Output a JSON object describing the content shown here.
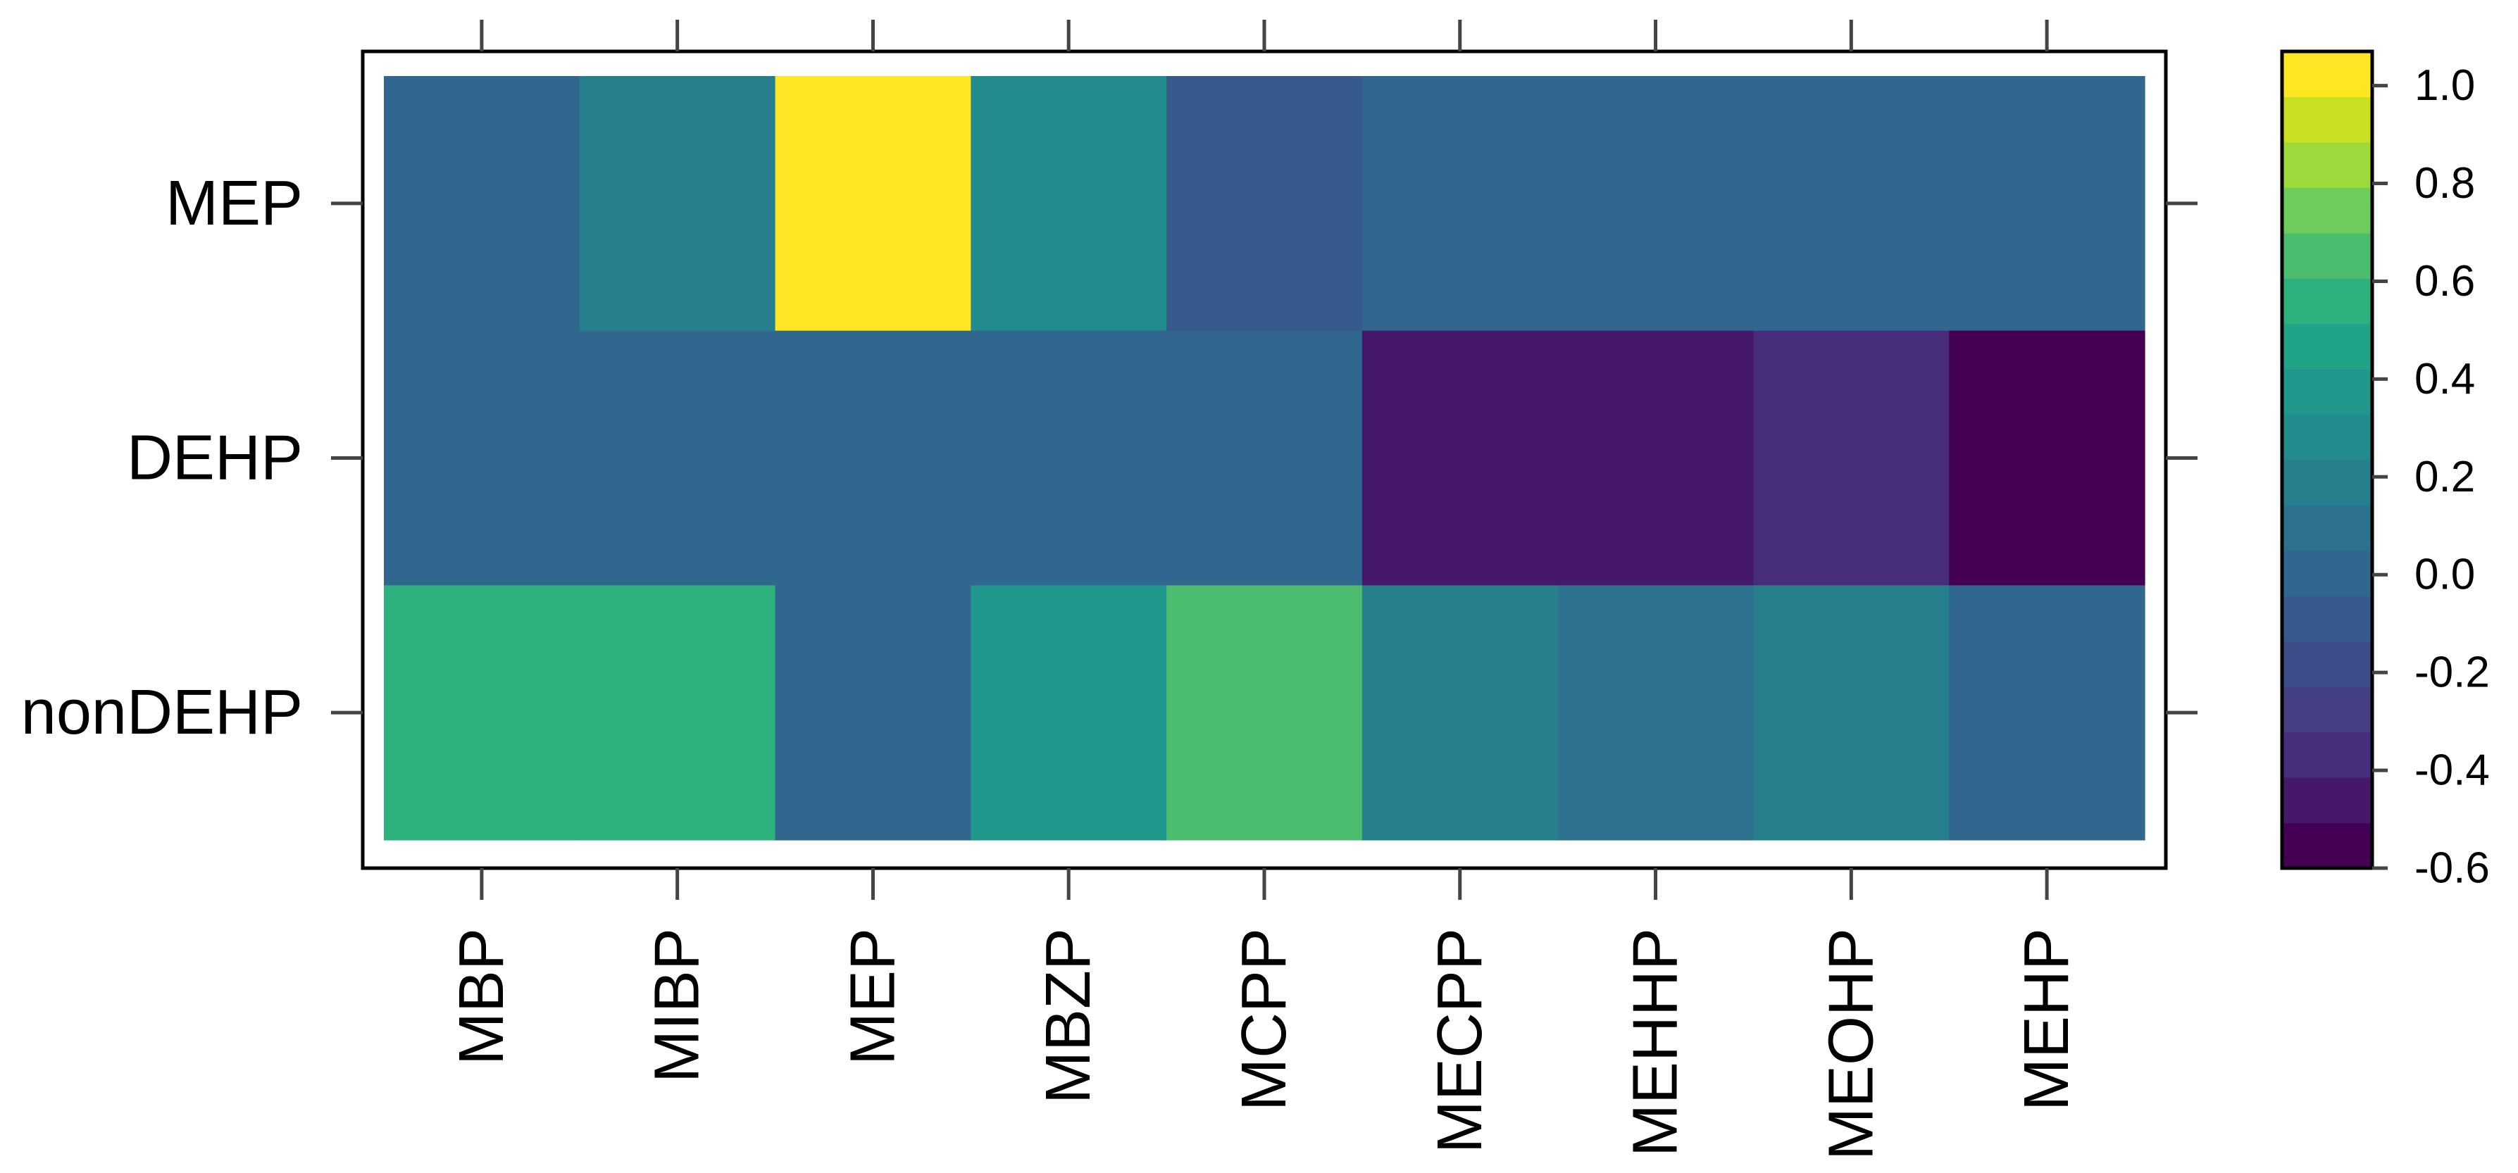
{
  "chart_data": {
    "type": "heatmap",
    "title": "",
    "xlabel": "",
    "ylabel": "",
    "x_categories": [
      "MBP",
      "MIBP",
      "MEP",
      "MBZP",
      "MCPP",
      "MECPP",
      "MEHHP",
      "MEOHP",
      "MEHP"
    ],
    "y_categories": [
      "MEP",
      "DEHP",
      "nonDEHP"
    ],
    "values": [
      [
        0.02,
        0.2,
        1.0,
        0.28,
        -0.1,
        0.02,
        0.02,
        0.02,
        0.02
      ],
      [
        0.02,
        0.02,
        0.02,
        0.02,
        0.02,
        -0.42,
        -0.42,
        -0.4,
        -0.58
      ],
      [
        0.58,
        0.58,
        0.02,
        0.4,
        0.65,
        0.2,
        0.08,
        0.2,
        0.04
      ]
    ],
    "colorbar": {
      "min": -0.6,
      "max": 1.07,
      "ticks": [
        1.0,
        0.8,
        0.6,
        0.4,
        0.2,
        0.0,
        -0.2,
        -0.4,
        -0.6
      ],
      "tick_labels": [
        "1.0",
        "0.8",
        "0.6",
        "0.4",
        "0.2",
        "0.0",
        "-0.2",
        "-0.4",
        "-0.6"
      ],
      "colors": [
        "#440154",
        "#46186b",
        "#472d7b",
        "#443f85",
        "#3e4c8a",
        "#375a8c",
        "#31678e",
        "#2c728e",
        "#277f8e",
        "#228b8d",
        "#1f978b",
        "#20a386",
        "#2db27d",
        "#4cbd6f",
        "#6ccd5a",
        "#9bd93c",
        "#c9e120",
        "#fde725"
      ]
    },
    "colormap": "viridis",
    "grid": false,
    "legend": "right"
  }
}
